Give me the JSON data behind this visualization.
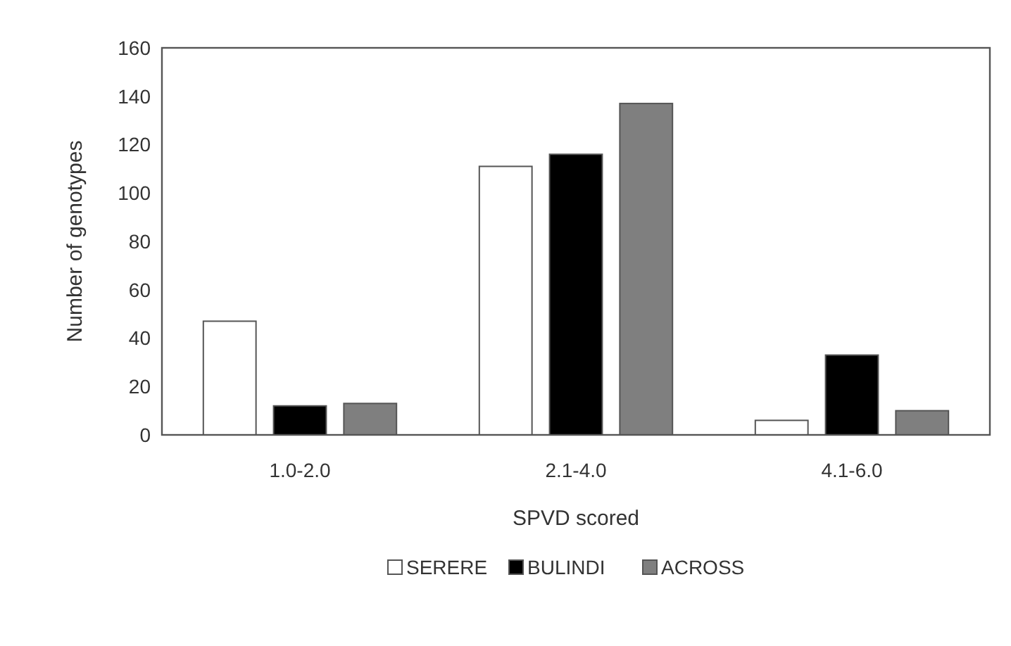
{
  "chart_data": {
    "type": "bar",
    "xlabel": "SPVD scored",
    "ylabel": "Number of genotypes",
    "categories": [
      "1.0-2.0",
      "2.1-4.0",
      "4.1-6.0"
    ],
    "series": [
      {
        "name": "SERERE",
        "color": "#ffffff",
        "values": [
          47,
          111,
          6
        ]
      },
      {
        "name": "BULINDI",
        "color": "#000000",
        "values": [
          12,
          116,
          33
        ]
      },
      {
        "name": "ACROSS",
        "color": "#7f7f7f",
        "values": [
          13,
          137,
          10
        ]
      }
    ],
    "ylim": [
      0,
      160
    ],
    "yticks": [
      0,
      20,
      40,
      60,
      80,
      100,
      120,
      140,
      160
    ],
    "grid": false,
    "legend": "bottom"
  }
}
